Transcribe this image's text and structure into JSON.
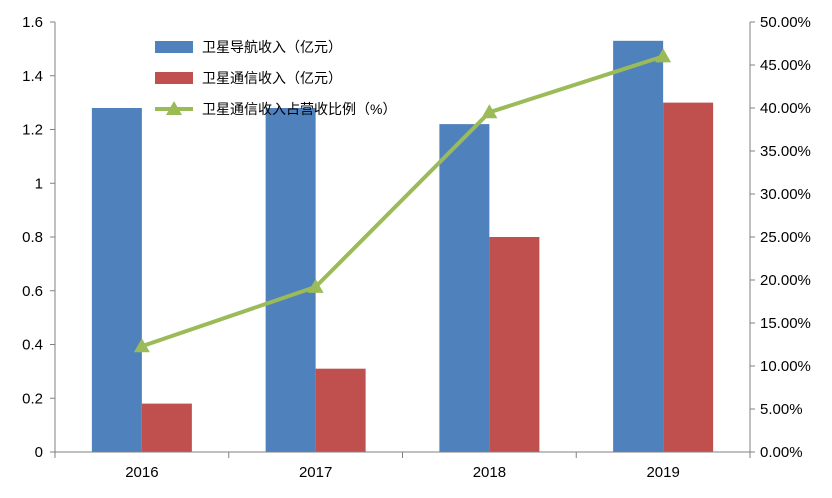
{
  "chart_data": {
    "type": "bar",
    "categories": [
      "2016",
      "2017",
      "2018",
      "2019"
    ],
    "series": [
      {
        "name": "卫星导航收入（亿元）",
        "type": "bar",
        "axis": "left",
        "color": "#4F81BD",
        "values": [
          1.28,
          1.28,
          1.22,
          1.53
        ]
      },
      {
        "name": "卫星通信收入（亿元）",
        "type": "bar",
        "axis": "left",
        "color": "#C0504D",
        "values": [
          0.18,
          0.31,
          0.8,
          1.3
        ]
      },
      {
        "name": "卫星通信收入占营收比例（%）",
        "type": "line",
        "axis": "right",
        "color": "#9BBB59",
        "values": [
          12.3,
          19.2,
          39.5,
          46.0
        ]
      }
    ],
    "y_left": {
      "ylim": [
        0,
        1.6
      ],
      "ticks": [
        "0",
        "0.2",
        "0.4",
        "0.6",
        "0.8",
        "1",
        "1.2",
        "1.4",
        "1.6"
      ]
    },
    "y_right": {
      "ylim": [
        0,
        50
      ],
      "ticks": [
        "0.00%",
        "5.00%",
        "10.00%",
        "15.00%",
        "20.00%",
        "25.00%",
        "30.00%",
        "35.00%",
        "40.00%",
        "45.00%",
        "50.00%"
      ]
    },
    "grid": false,
    "legend_position": "top-left"
  }
}
